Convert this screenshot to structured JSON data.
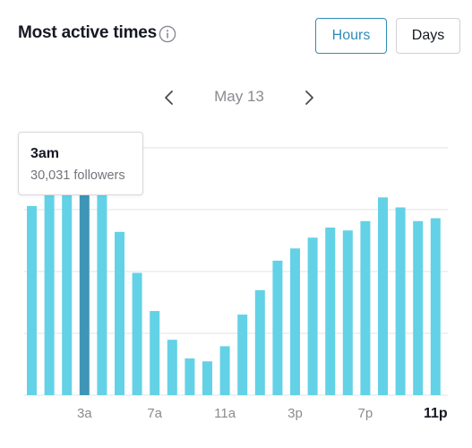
{
  "header": {
    "title": "Most active times",
    "info_icon": "info-circle-icon"
  },
  "toggle": {
    "hours_label": "Hours",
    "days_label": "Days",
    "selected": "Hours"
  },
  "date_nav": {
    "label": "May 13",
    "prev_icon": "chevron-left-icon",
    "next_icon": "chevron-right-icon"
  },
  "tooltip": {
    "time": "3am",
    "value": "30,031 followers"
  },
  "colors": {
    "bar": "#63d2e6",
    "bar_highlight": "#3e95b6",
    "accent": "#2e8db6",
    "grid": "#e3e3e6",
    "tick_text": "#8a8b91",
    "tick_text_bold": "#161823"
  },
  "chart_data": {
    "type": "bar",
    "categories": [
      "0",
      "1",
      "2",
      "3",
      "4",
      "5",
      "6",
      "7",
      "8",
      "9",
      "10",
      "11",
      "12",
      "13",
      "14",
      "15",
      "16",
      "17",
      "18",
      "19",
      "20",
      "21",
      "22",
      "23"
    ],
    "values": [
      26300,
      28200,
      29600,
      30031,
      28000,
      22700,
      17000,
      11700,
      7700,
      5100,
      4700,
      6800,
      11200,
      14600,
      18700,
      20400,
      21900,
      23300,
      22900,
      24200,
      27500,
      26100,
      24200,
      24600
    ],
    "highlight_index": 3,
    "ylim": [
      0,
      37500
    ],
    "y_gridlines": [
      8600,
      17200,
      25800,
      34400
    ],
    "x_tick_labels": [
      {
        "index": 3,
        "label": "3a",
        "bold": false
      },
      {
        "index": 7,
        "label": "7a",
        "bold": false
      },
      {
        "index": 11,
        "label": "11a",
        "bold": false
      },
      {
        "index": 15,
        "label": "3p",
        "bold": false
      },
      {
        "index": 19,
        "label": "7p",
        "bold": false
      },
      {
        "index": 23,
        "label": "11p",
        "bold": true
      }
    ],
    "grid": true,
    "title": "",
    "xlabel": "",
    "ylabel": ""
  }
}
